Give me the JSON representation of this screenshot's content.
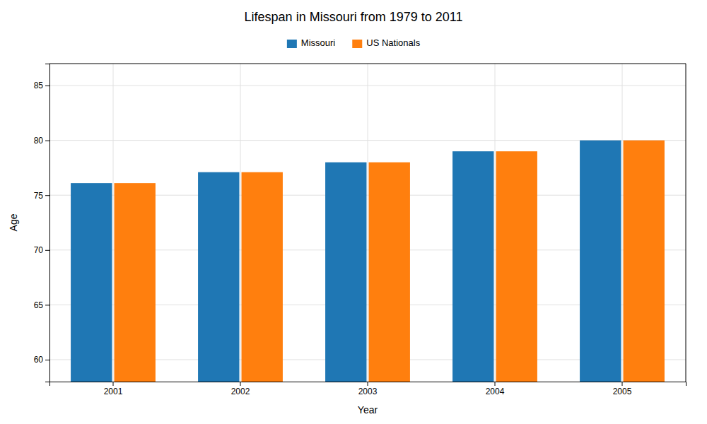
{
  "chart_data": {
    "type": "bar",
    "title": "Lifespan in Missouri from 1979 to 2011",
    "xlabel": "Year",
    "ylabel": "Age",
    "categories": [
      "2001",
      "2002",
      "2003",
      "2004",
      "2005"
    ],
    "series": [
      {
        "name": "Missouri",
        "values": [
          76.1,
          77.1,
          78.0,
          79.0,
          80.0
        ]
      },
      {
        "name": "US Nationals",
        "values": [
          76.1,
          77.1,
          78.0,
          79.0,
          80.0
        ]
      }
    ],
    "ylim": [
      58,
      87
    ],
    "yticks": [
      60,
      65,
      70,
      75,
      80,
      85
    ],
    "grid": true,
    "legend": "top"
  }
}
